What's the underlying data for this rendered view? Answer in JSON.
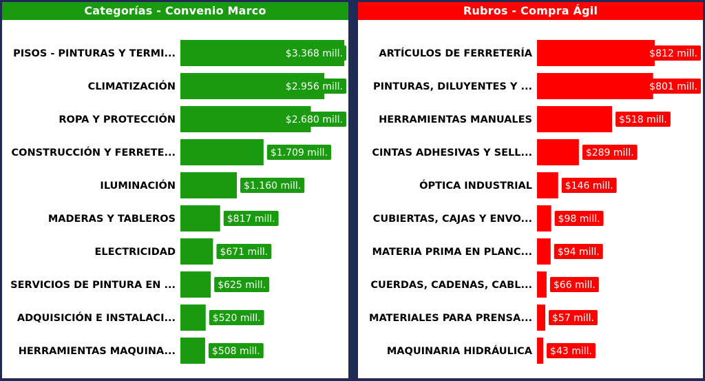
{
  "chart_data": [
    {
      "type": "bar",
      "orientation": "horizontal",
      "title": "Categorías - Convenio Marco",
      "color": "#1a9a0f",
      "categories": [
        "PISOS - PINTURAS Y TERMI...",
        "CLIMATIZACIÓN",
        "ROPA Y PROTECCIÓN",
        "CONSTRUCCIÓN Y FERRETE...",
        "ILUMINACIÓN",
        "MADERAS Y TABLEROS",
        "ELECTRICIDAD",
        "SERVICIOS DE PINTURA EN ...",
        "ADQUISICIÓN E INSTALACI...",
        "HERRAMIENTAS MAQUINA..."
      ],
      "values": [
        3368,
        2956,
        2680,
        1709,
        1160,
        817,
        671,
        625,
        520,
        508
      ],
      "value_labels": [
        "$3.368 mill.",
        "$2.956 mill.",
        "$2.680 mill.",
        "$1.709 mill.",
        "$1.160 mill.",
        "$817 mill.",
        "$671 mill.",
        "$625 mill.",
        "$520 mill.",
        "$508 mill."
      ],
      "xlim": [
        0,
        3960
      ],
      "grid": false,
      "legend": "none"
    },
    {
      "type": "bar",
      "orientation": "horizontal",
      "title": "Rubros - Compra Ágil",
      "color": "#ff0000",
      "categories": [
        "ARTÍCULOS DE FERRETERÍA",
        "PINTURAS, DILUYENTES Y ...",
        "HERRAMIENTAS MANUALES",
        "CINTAS ADHESIVAS Y SELL...",
        "ÓPTICA INDUSTRIAL",
        "CUBIERTAS, CAJAS Y ENVO...",
        "MATERIA PRIMA EN PLANC...",
        "CUERDAS, CADENAS, CABL...",
        "MATERIALES PARA PRENSA...",
        "MAQUINARIA HIDRÁULICA"
      ],
      "values": [
        812,
        801,
        518,
        289,
        146,
        98,
        94,
        66,
        57,
        43
      ],
      "value_labels": [
        "$812 mill.",
        "$801 mill.",
        "$518 mill.",
        "$289 mill.",
        "$146 mill.",
        "$98 mill.",
        "$94 mill.",
        "$66 mill.",
        "$57 mill.",
        "$43 mill."
      ],
      "xlim": [
        0,
        950
      ],
      "grid": false,
      "legend": "none"
    }
  ]
}
